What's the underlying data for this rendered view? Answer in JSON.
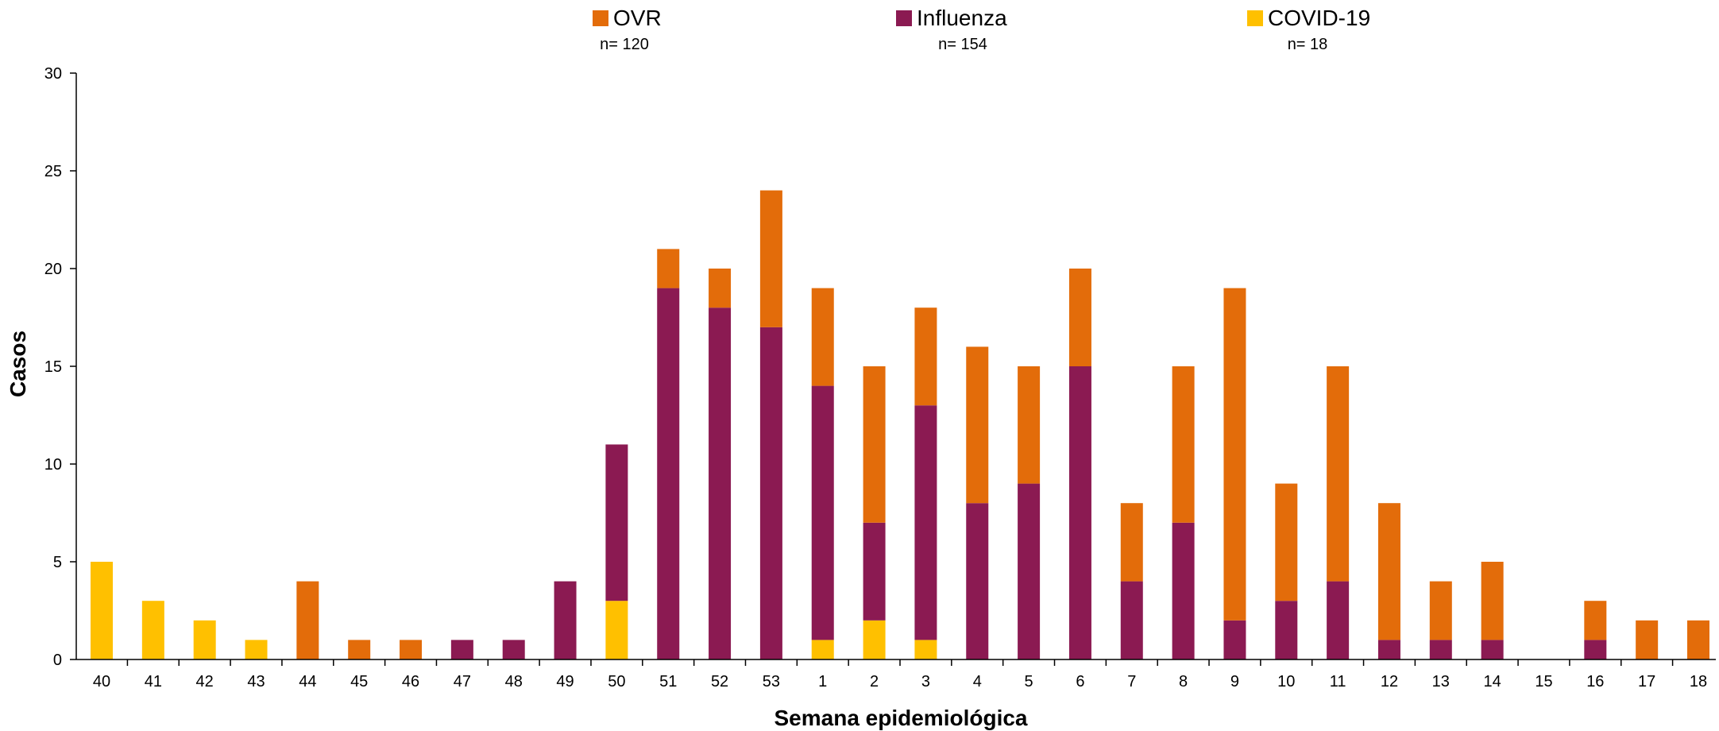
{
  "chart_data": {
    "type": "bar",
    "stacked": true,
    "xlabel": "Semana epidemiológica",
    "ylabel": "Casos",
    "ylim": [
      0,
      30
    ],
    "yticks": [
      0,
      5,
      10,
      15,
      20,
      25,
      30
    ],
    "legend_position": "top",
    "categories": [
      "40",
      "41",
      "42",
      "43",
      "44",
      "45",
      "46",
      "47",
      "48",
      "49",
      "50",
      "51",
      "52",
      "53",
      "1",
      "2",
      "3",
      "4",
      "5",
      "6",
      "7",
      "8",
      "9",
      "10",
      "11",
      "12",
      "13",
      "14",
      "15",
      "16",
      "17",
      "18"
    ],
    "series": [
      {
        "name": "COVID-19",
        "n_label": "n= 18",
        "color": "#FFC000",
        "values": [
          5,
          3,
          2,
          1,
          0,
          0,
          0,
          0,
          0,
          0,
          3,
          0,
          0,
          0,
          1,
          2,
          1,
          0,
          0,
          0,
          0,
          0,
          0,
          0,
          0,
          0,
          0,
          0,
          0,
          0,
          0,
          0
        ]
      },
      {
        "name": "Influenza",
        "n_label": "n= 154",
        "color": "#8B1A52",
        "values": [
          0,
          0,
          0,
          0,
          0,
          0,
          0,
          1,
          1,
          4,
          8,
          19,
          18,
          17,
          13,
          5,
          12,
          8,
          9,
          15,
          4,
          7,
          2,
          3,
          4,
          1,
          1,
          1,
          0,
          1,
          0,
          0
        ]
      },
      {
        "name": "OVR",
        "n_label": "n= 120",
        "color": "#E36C0A",
        "values": [
          0,
          0,
          0,
          0,
          4,
          1,
          1,
          0,
          0,
          0,
          0,
          2,
          2,
          7,
          5,
          8,
          5,
          8,
          6,
          5,
          4,
          8,
          17,
          6,
          11,
          7,
          3,
          4,
          0,
          2,
          2,
          2
        ]
      }
    ],
    "legend_order": [
      "OVR",
      "Influenza",
      "COVID-19"
    ]
  }
}
